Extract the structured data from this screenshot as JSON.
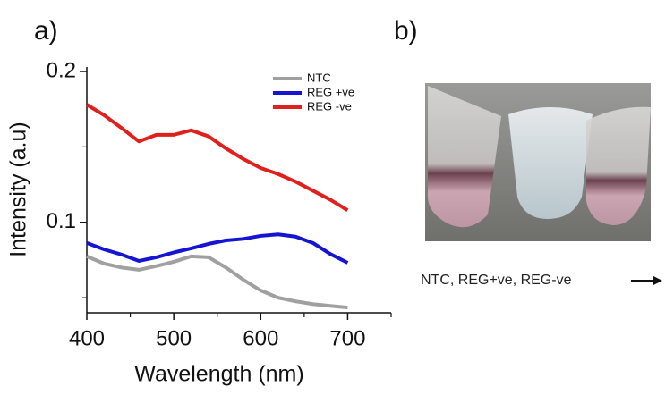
{
  "panel_labels": [
    "a)",
    "b)"
  ],
  "photo_caption": "NTC, REG+ve, REG-ve",
  "chart_data": {
    "type": "line",
    "xlabel": "Wavelength (nm)",
    "ylabel": "Intensity (a.u)",
    "x": [
      400,
      420,
      440,
      460,
      480,
      500,
      520,
      540,
      560,
      580,
      600,
      620,
      640,
      660,
      680,
      700
    ],
    "series": [
      {
        "name": "NTC",
        "color": "#a0a0a0",
        "values": [
          0.0774,
          0.0726,
          0.07,
          0.0685,
          0.071,
          0.0738,
          0.0774,
          0.0768,
          0.07,
          0.0619,
          0.0548,
          0.05,
          0.0476,
          0.0458,
          0.0446,
          0.0435
        ]
      },
      {
        "name": "REG +ve",
        "color": "#1414d2",
        "values": [
          0.0863,
          0.082,
          0.0786,
          0.0744,
          0.0768,
          0.08,
          0.0827,
          0.0857,
          0.088,
          0.089,
          0.091,
          0.092,
          0.0905,
          0.0863,
          0.079,
          0.0732
        ]
      },
      {
        "name": "REG -ve",
        "color": "#e0201c",
        "values": [
          0.178,
          0.171,
          0.1625,
          0.1536,
          0.158,
          0.158,
          0.161,
          0.157,
          0.149,
          0.142,
          0.136,
          0.132,
          0.127,
          0.121,
          0.115,
          0.108
        ]
      }
    ],
    "xlim": [
      400,
      750
    ],
    "xticks": [
      400,
      500,
      600,
      700
    ],
    "xticks_minor": [
      450,
      550,
      650,
      750
    ],
    "ylim": [
      0.04,
      0.2
    ],
    "yticks": [
      0.1,
      0.2
    ],
    "yticks_minor": [
      0.05,
      0.15
    ],
    "legend": "upper right"
  }
}
